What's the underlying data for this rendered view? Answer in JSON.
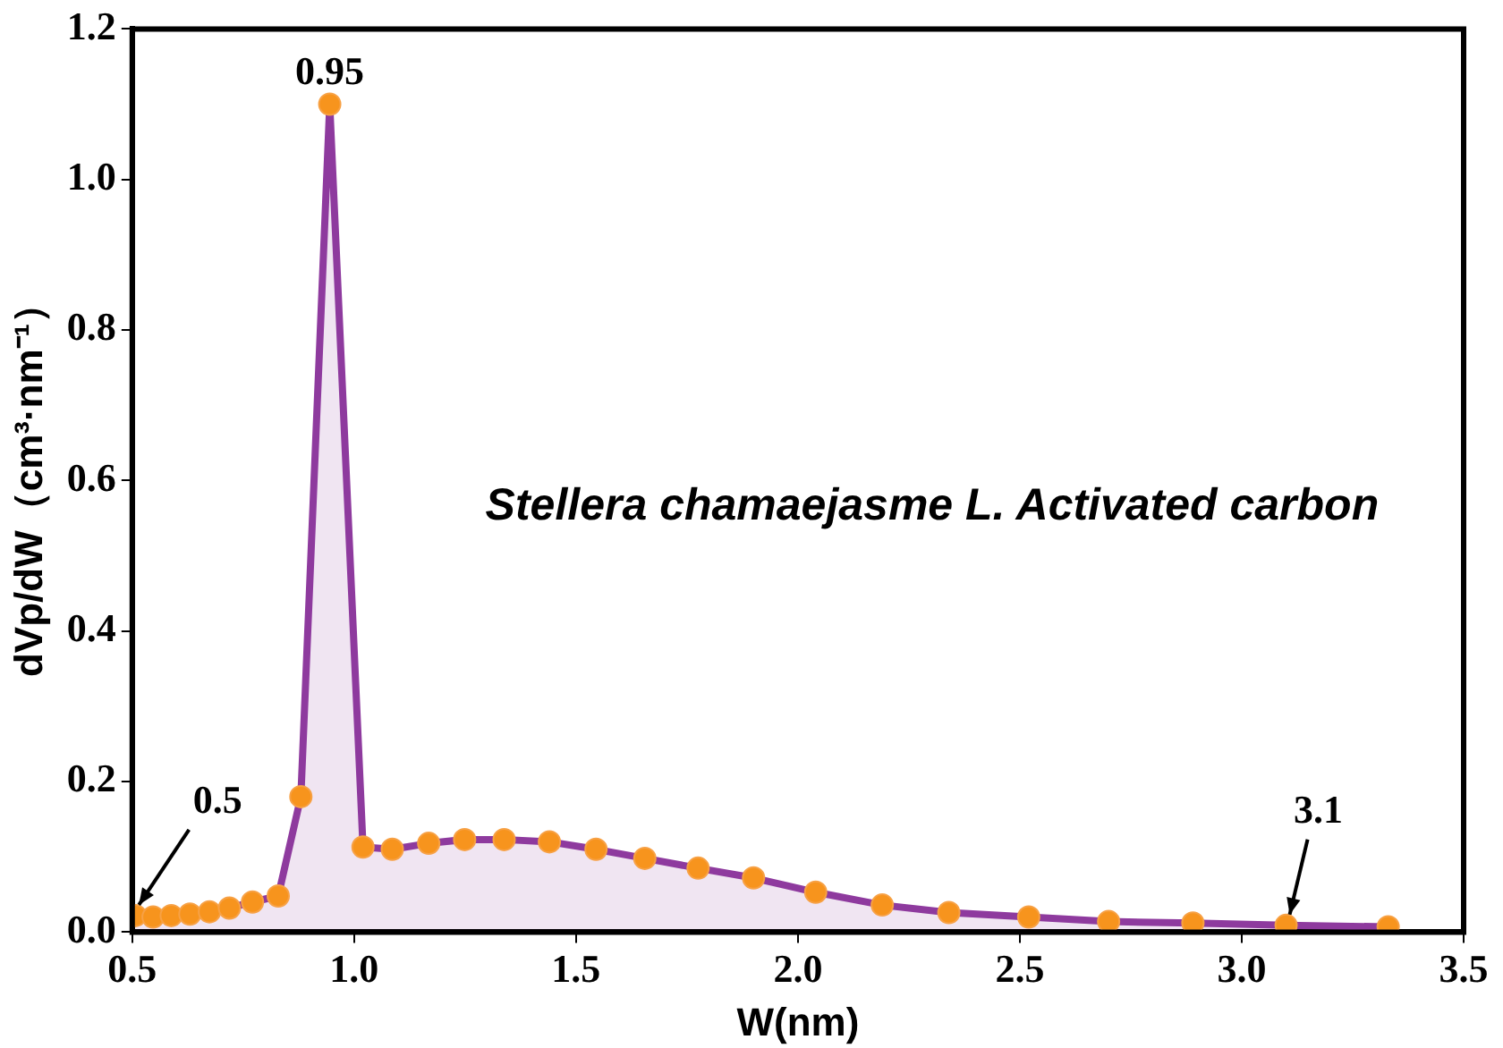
{
  "chart_data": {
    "type": "area",
    "xlabel": "W(nm)",
    "ylabel": "dVp/dW（cm³·nm⁻¹）",
    "x": [
      0.507,
      0.547,
      0.588,
      0.63,
      0.674,
      0.719,
      0.771,
      0.829,
      0.88,
      0.945,
      1.02,
      1.086,
      1.168,
      1.249,
      1.338,
      1.44,
      1.545,
      1.655,
      1.775,
      1.9,
      2.04,
      2.19,
      2.34,
      2.52,
      2.7,
      2.89,
      3.1,
      3.33
    ],
    "series": [
      {
        "color": "#8e3a9e",
        "values": [
          0.022,
          0.02,
          0.022,
          0.024,
          0.027,
          0.032,
          0.04,
          0.048,
          0.18,
          1.1,
          0.113,
          0.11,
          0.118,
          0.123,
          0.123,
          0.12,
          0.11,
          0.098,
          0.085,
          0.072,
          0.053,
          0.036,
          0.026,
          0.02,
          0.014,
          0.012,
          0.009,
          0.007
        ]
      }
    ],
    "xlim": [
      0.5,
      3.5
    ],
    "xticks": [
      0.5,
      {
        "value": 1,
        "label": "1.0"
      },
      1.5,
      {
        "value": 2,
        "label": "2.0"
      },
      2.5,
      {
        "value": 3,
        "label": "3.0"
      },
      3.5
    ],
    "ylim": [
      0,
      1.2
    ],
    "yticks": [
      {
        "value": 0,
        "label": "0.0"
      },
      0.2,
      0.4,
      0.6,
      0.8,
      {
        "value": 1,
        "label": "1.0"
      },
      1.2
    ],
    "marker": "circle",
    "grid": false,
    "legend": false,
    "annotations": [
      {
        "text": "0.95",
        "x": 0.945,
        "y": 1.1
      },
      {
        "text": "0.5",
        "x": 0.507,
        "y": 0.022
      },
      {
        "text": "3.1",
        "x": 3.1,
        "y": 0.009
      },
      "Stellera chamaejasme L. Activated carbon"
    ]
  }
}
